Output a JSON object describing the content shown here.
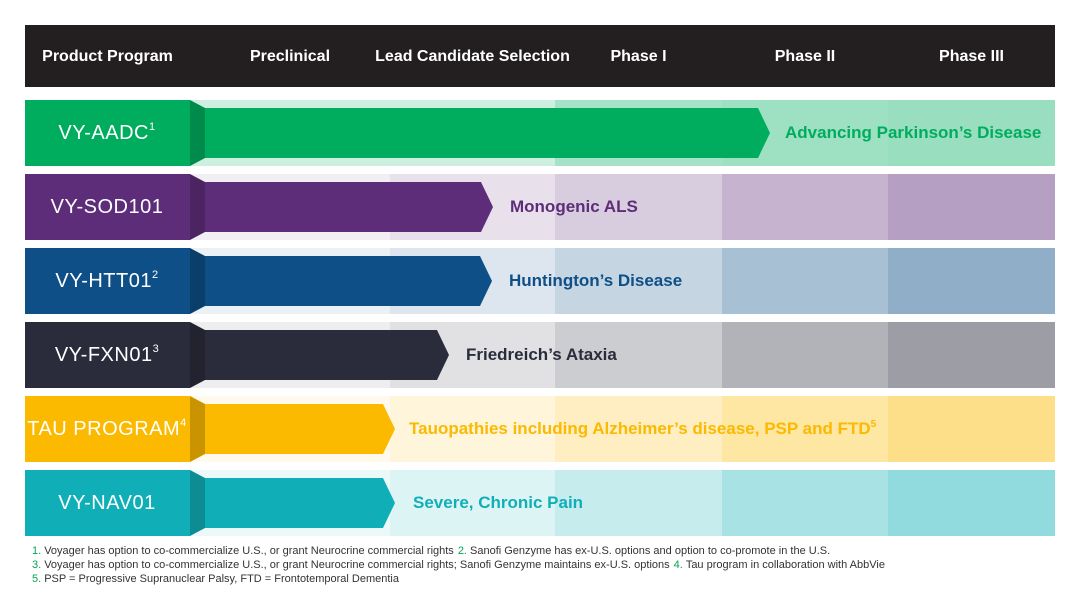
{
  "header": {
    "columns": [
      "Product Program",
      "Preclinical",
      "Lead Candidate Selection",
      "Phase I",
      "Phase II",
      "Phase III"
    ]
  },
  "programs": [
    {
      "name": "VY-AADC",
      "note": "1",
      "indication": "Advancing Parkinson’s Disease",
      "color": "#00ad5f"
    },
    {
      "name": "VY-SOD101",
      "indication": "Monogenic ALS",
      "color": "#5e2d79"
    },
    {
      "name": "VY-HTT01",
      "note": "2",
      "indication": "Huntington’s Disease",
      "color": "#0d4f86"
    },
    {
      "name": "VY-FXN01",
      "note": "3",
      "indication": "Friedreich’s Ataxia",
      "color": "#2a2c3b"
    },
    {
      "name": "TAU PROGRAM",
      "note": "4",
      "indication": "Tauopathies including Alzheimer’s disease, PSP and FTD",
      "indication_note": "5",
      "color": "#fbb900"
    },
    {
      "name": "VY-NAV01",
      "indication": "Severe, Chronic Pain",
      "color": "#10afb8"
    }
  ],
  "footnotes": [
    [
      {
        "number": "1.",
        "text": "Voyager has option to co-commercialize U.S., or grant Neurocrine commercial rights"
      },
      {
        "number": "2.",
        "text": "Sanofi Genzyme has ex-U.S. options and option to co-promote in the U.S."
      }
    ],
    [
      {
        "number": "3.",
        "text": "Voyager has option to co-commercialize U.S., or grant Neurocrine commercial rights; Sanofi Genzyme maintains ex-U.S. options"
      },
      {
        "number": "4.",
        "text": "Tau program in collaboration with AbbVie"
      }
    ],
    [
      {
        "number": "5.",
        "text": "PSP = Progressive Supranuclear Palsy, FTD = Frontotemporal Dementia"
      }
    ]
  ]
}
